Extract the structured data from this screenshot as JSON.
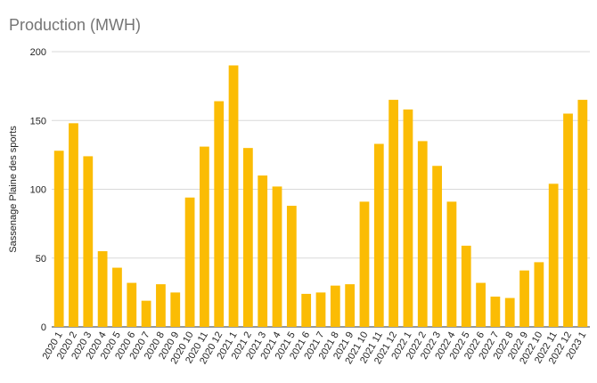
{
  "chart_data": {
    "type": "bar",
    "title": "Production (MWH)",
    "xlabel": "",
    "ylabel": "Sassenage Plaine des sports",
    "ylim": [
      0,
      200
    ],
    "yticks": [
      0,
      50,
      100,
      150,
      200
    ],
    "grid": true,
    "legend": "none",
    "bar_color": "#FBBC04",
    "categories": [
      "2020 1",
      "2020 2",
      "2020 3",
      "2020 4",
      "2020 5",
      "2020 6",
      "2020 7",
      "2020 8",
      "2020 9",
      "2020 10",
      "2020 11",
      "2020 12",
      "2021 1",
      "2021 2",
      "2021 3",
      "2021 4",
      "2021 5",
      "2021 6",
      "2021 7",
      "2021 8",
      "2021 9",
      "2021 10",
      "2021 11",
      "2021 12",
      "2022 1",
      "2022 2",
      "2022 3",
      "2022 4",
      "2022 5",
      "2022 6",
      "2022 7",
      "2022 8",
      "2022 9",
      "2022 10",
      "2022 11",
      "2022 12",
      "2023 1"
    ],
    "values": [
      128,
      148,
      124,
      55,
      43,
      32,
      19,
      31,
      25,
      94,
      131,
      164,
      190,
      130,
      110,
      102,
      88,
      24,
      25,
      30,
      31,
      91,
      133,
      165,
      158,
      135,
      117,
      91,
      59,
      32,
      22,
      21,
      41,
      47,
      104,
      155,
      165
    ]
  }
}
